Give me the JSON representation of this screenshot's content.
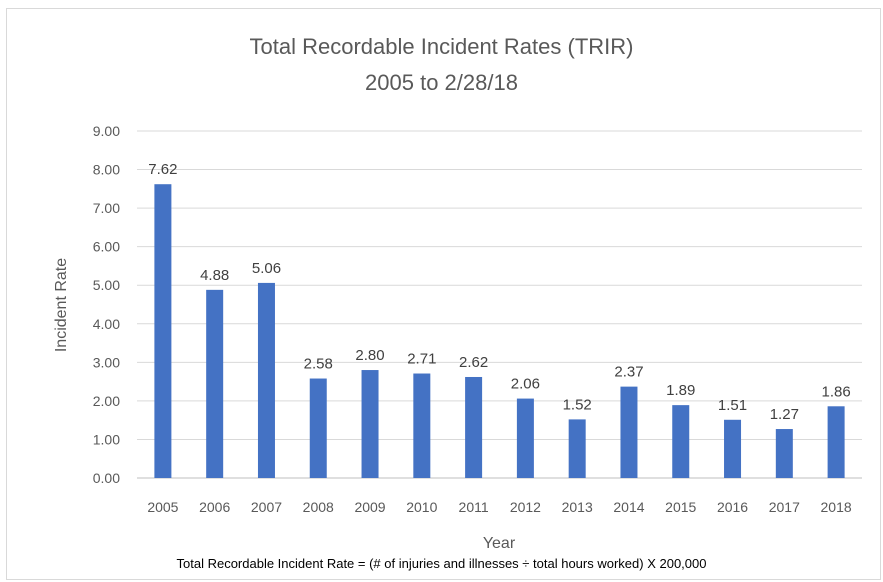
{
  "chart_data": {
    "type": "bar",
    "title": "Total Recordable Incident Rates (TRIR)",
    "subtitle": "2005 to 2/28/18",
    "xlabel": "Year",
    "ylabel": "Incident Rate",
    "categories": [
      "2005",
      "2006",
      "2007",
      "2008",
      "2009",
      "2010",
      "2011",
      "2012",
      "2013",
      "2014",
      "2015",
      "2016",
      "2017",
      "2018"
    ],
    "values": [
      7.62,
      4.88,
      5.06,
      2.58,
      2.8,
      2.71,
      2.62,
      2.06,
      1.52,
      2.37,
      1.89,
      1.51,
      1.27,
      1.86
    ],
    "value_labels": [
      "7.62",
      "4.88",
      "5.06",
      "2.58",
      "2.80",
      "2.71",
      "2.62",
      "2.06",
      "1.52",
      "2.37",
      "1.89",
      "1.51",
      "1.27",
      "1.86"
    ],
    "ylim": [
      0,
      9
    ],
    "yticks": [
      "0.00",
      "1.00",
      "2.00",
      "3.00",
      "4.00",
      "5.00",
      "6.00",
      "7.00",
      "8.00",
      "9.00"
    ],
    "grid": true,
    "bar_color": "#4472C4"
  },
  "footnote": "Total Recordable Incident Rate = (# of injuries and illnesses ÷ total hours worked) X 200,000"
}
